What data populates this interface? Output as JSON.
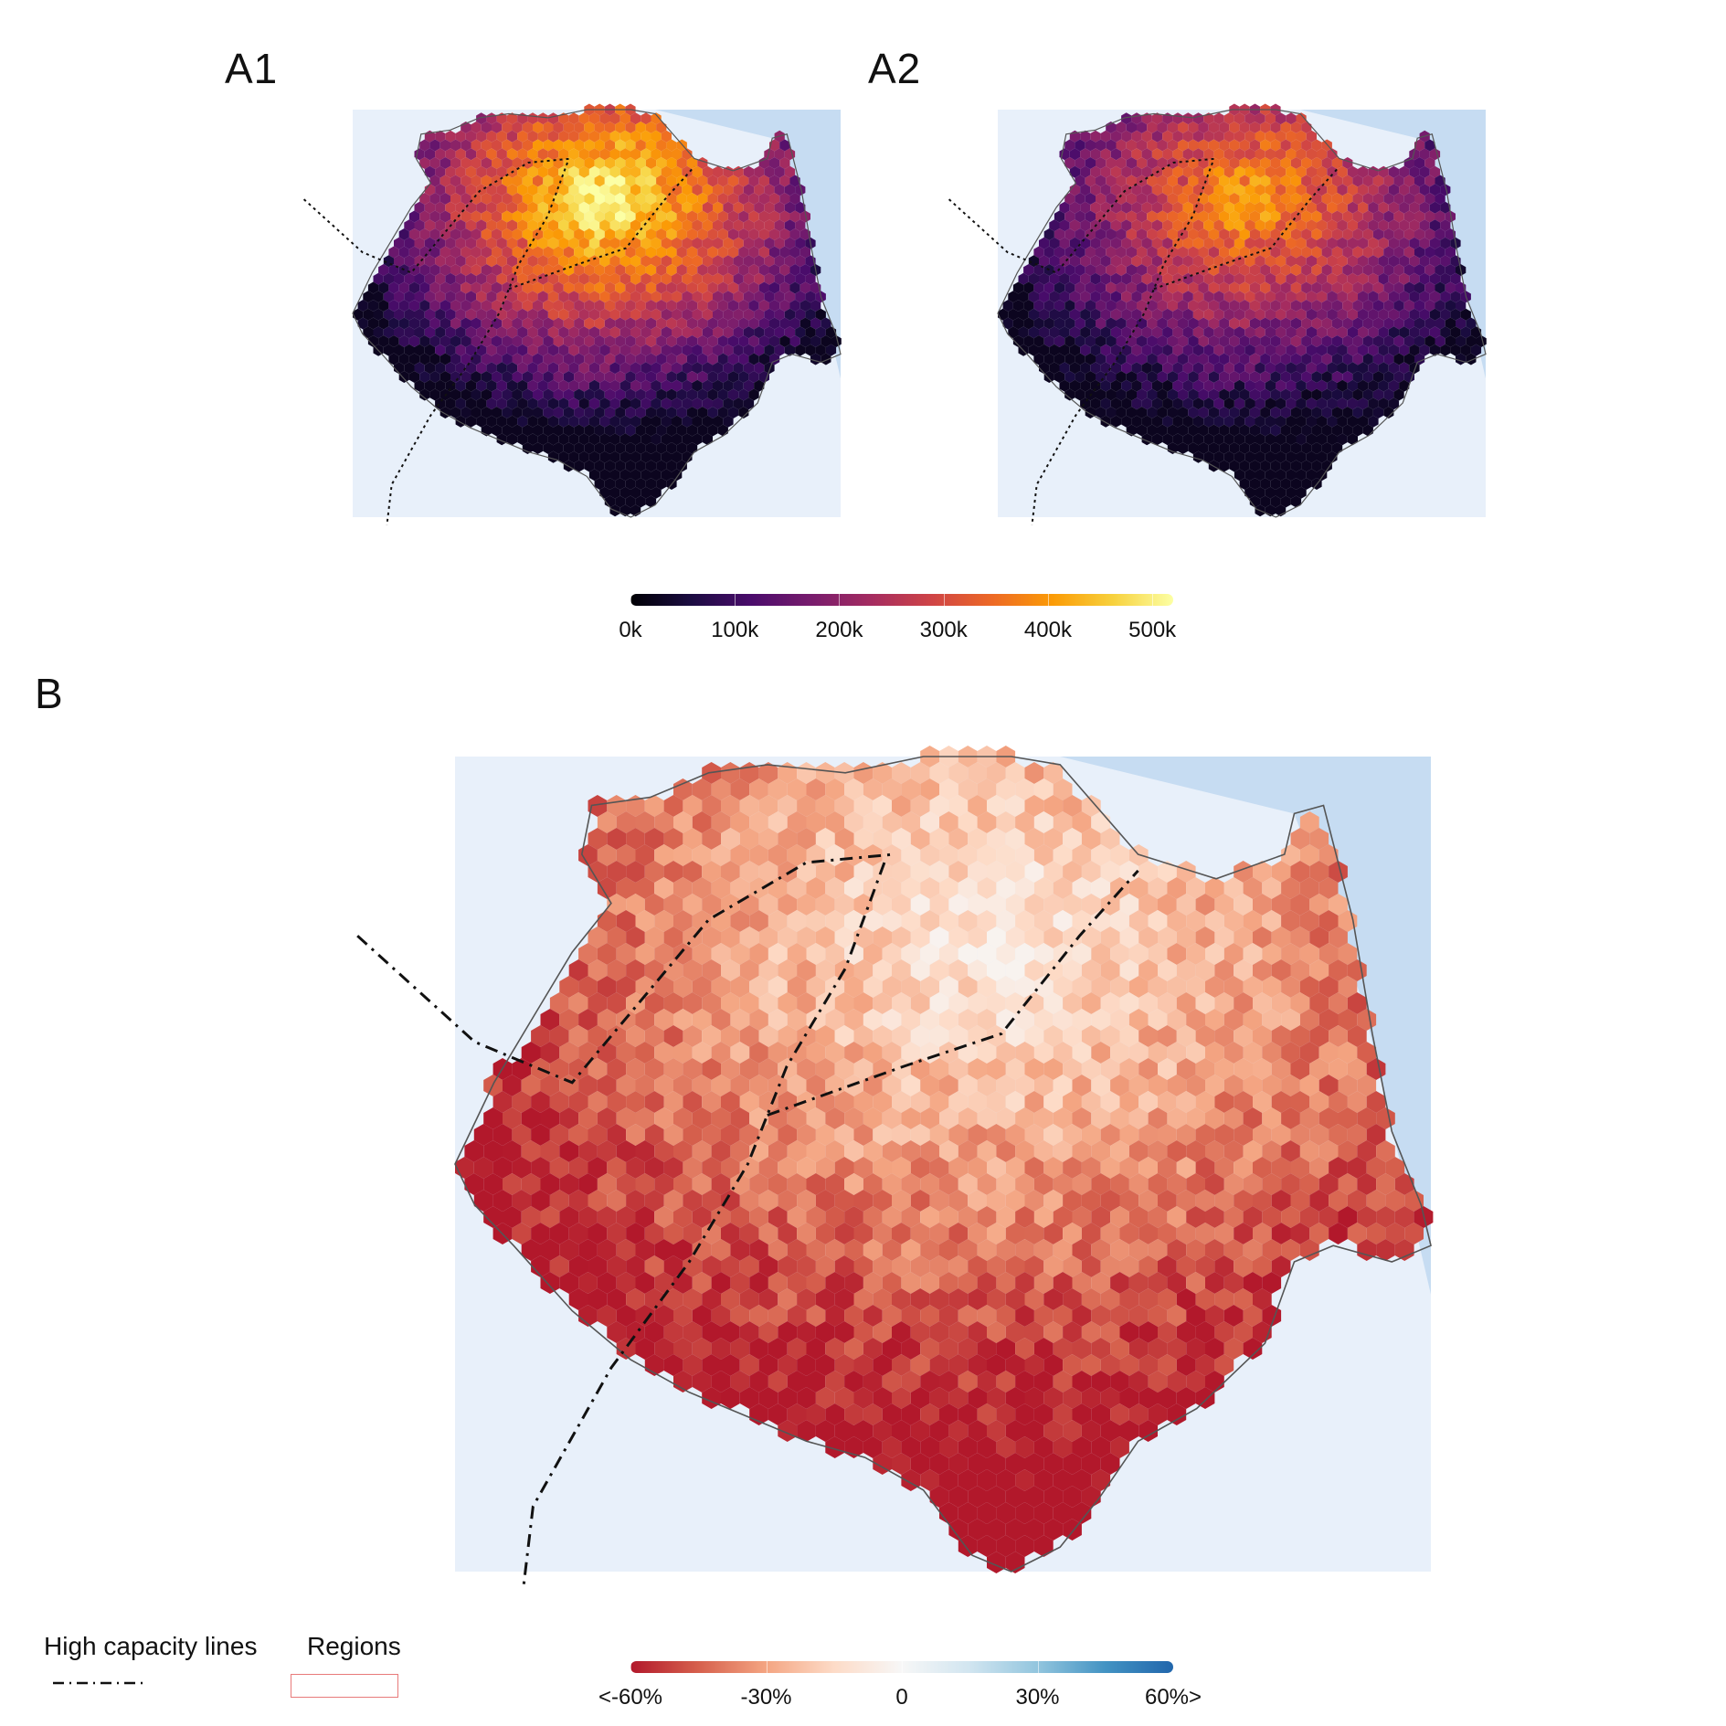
{
  "panels": {
    "a1": "A1",
    "a2": "A2",
    "b": "B"
  },
  "colorbar_a": {
    "ticks": [
      "0k",
      "100k",
      "200k",
      "300k",
      "400k",
      "500k"
    ],
    "range": [
      0,
      520000
    ],
    "tick_values": [
      0,
      100000,
      200000,
      300000,
      400000,
      500000
    ],
    "palette": "inferno"
  },
  "colorbar_b": {
    "ticks": [
      "<-60%",
      "-30%",
      "0",
      "30%",
      "60%>"
    ],
    "range": [
      -60,
      60
    ],
    "tick_values": [
      -60,
      -30,
      0,
      30,
      60
    ],
    "palette": "RdBu"
  },
  "legend": {
    "lines_title": "High capacity lines",
    "regions_title": "Regions"
  },
  "colors": {
    "water": "#c6dcf2",
    "land": "#e8f0fa",
    "boundary": "#555555",
    "regions_legend": "#e87a7a"
  }
}
